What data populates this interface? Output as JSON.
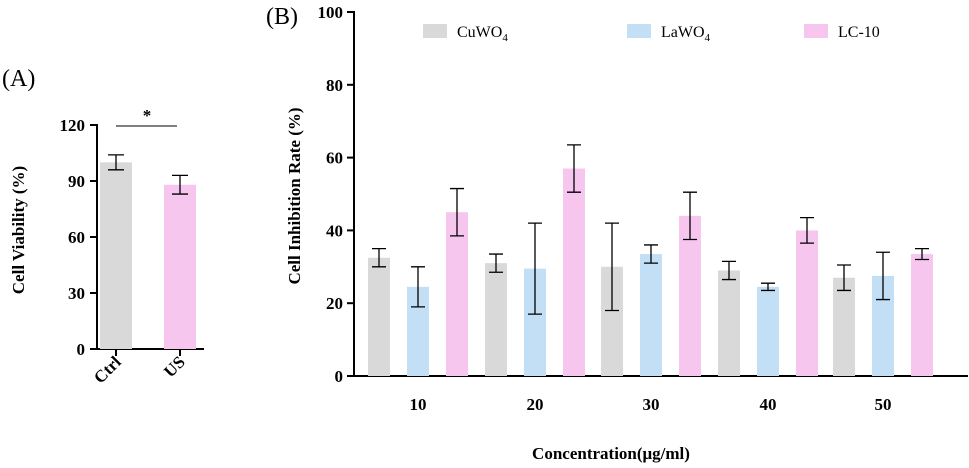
{
  "chart_data": [
    {
      "type": "bar",
      "panel_label": "(A)",
      "categories": [
        "Ctrl",
        "US"
      ],
      "values": [
        100,
        88
      ],
      "errors": [
        4,
        5
      ],
      "colors": [
        "#d9d9d9",
        "#f7c6ef"
      ],
      "ylabel": "Cell Viability (%)",
      "xlabel": "",
      "ylim": [
        0,
        120
      ],
      "yticks": [
        "0",
        "30",
        "60",
        "90",
        "120"
      ],
      "significance": {
        "label": "*",
        "between": [
          "Ctrl",
          "US"
        ]
      }
    },
    {
      "type": "bar",
      "panel_label": "(B)",
      "categories": [
        "10",
        "20",
        "30",
        "40",
        "50"
      ],
      "series": [
        {
          "name": "CuWO",
          "subscript": "4",
          "color": "#d9d9d9",
          "values": [
            32.5,
            31,
            30,
            29,
            27
          ],
          "errors": [
            2.5,
            2.5,
            12,
            2.5,
            3.5
          ]
        },
        {
          "name": "LaWO",
          "subscript": "4",
          "color": "#c2dff5",
          "values": [
            24.5,
            29.5,
            33.5,
            24.5,
            27.5
          ],
          "errors": [
            5.5,
            12.5,
            2.5,
            1,
            6.5
          ]
        },
        {
          "name": "LC-10",
          "subscript": "",
          "color": "#f7c6ef",
          "values": [
            45,
            57,
            44,
            40,
            33.5
          ],
          "errors": [
            6.5,
            6.5,
            6.5,
            3.5,
            1.5
          ]
        }
      ],
      "ylabel": "Cell Inhibition Rate (%)",
      "xlabel": "Concentration(μg/ml)",
      "ylim": [
        0,
        100
      ],
      "yticks": [
        "0",
        "20",
        "40",
        "60",
        "80",
        "100"
      ]
    }
  ]
}
